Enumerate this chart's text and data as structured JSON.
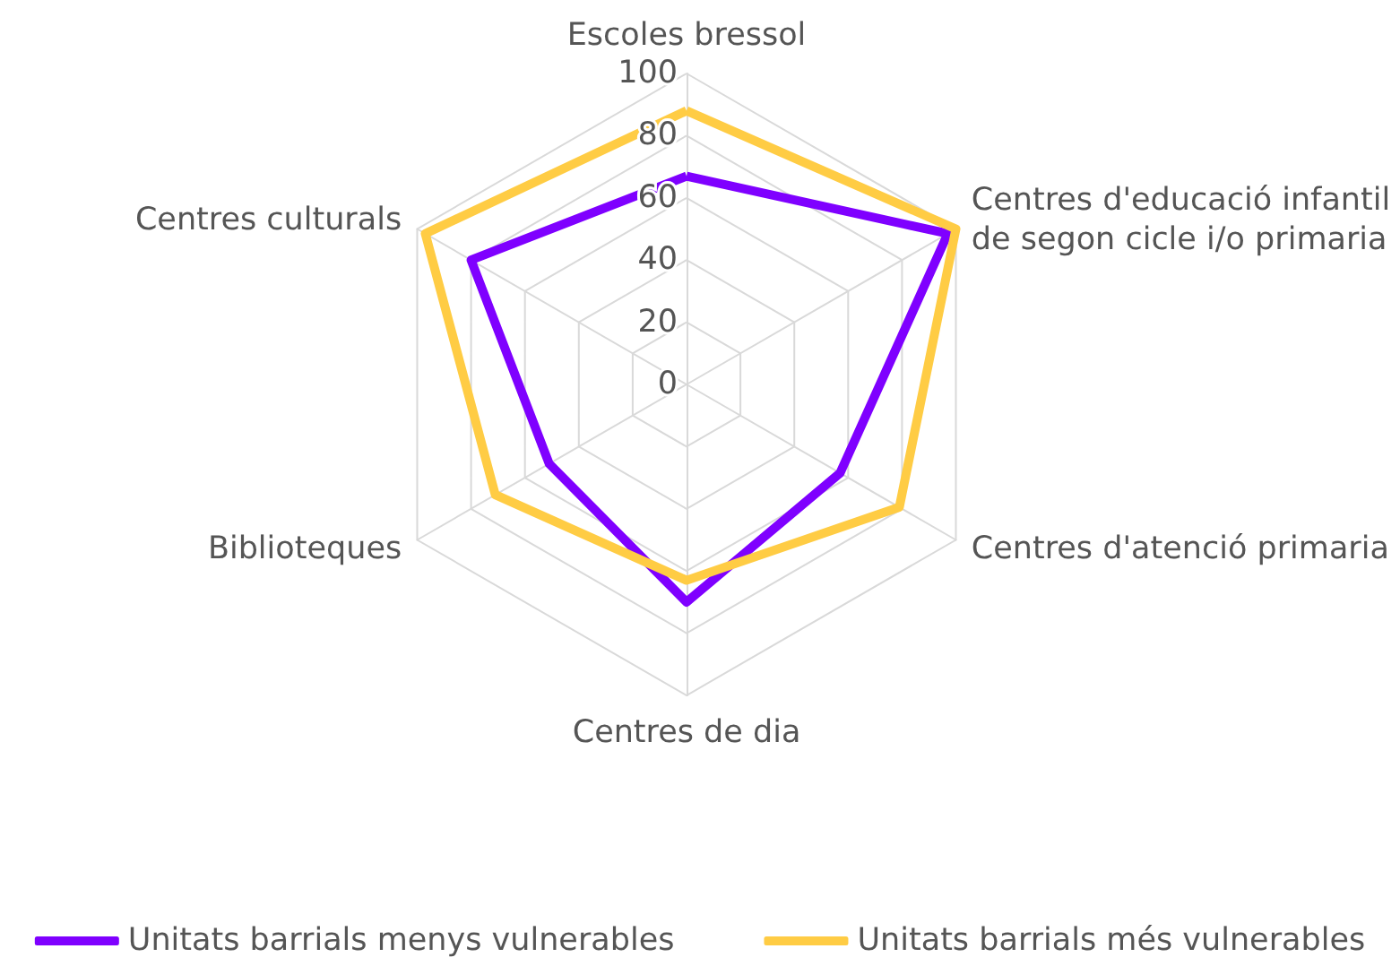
{
  "chart_data": {
    "type": "radar",
    "categories": [
      "Escoles bressol",
      "Centres d'educació infantil\nde segon cicle i/o primaria",
      "Centres d'atenció primaria",
      "Centres de dia",
      "Biblioteques",
      "Centres culturals"
    ],
    "series": [
      {
        "name": "Unitats barrials menys vulnerables",
        "color": "#7f00ff",
        "values": [
          67,
          97,
          57,
          70,
          51,
          80
        ]
      },
      {
        "name": "Unitats barrials més vulnerables",
        "color": "#ffcc44",
        "values": [
          88,
          100,
          79,
          63,
          71,
          97
        ]
      }
    ],
    "ylim": [
      0,
      100
    ],
    "yticks": [
      0,
      20,
      40,
      60,
      80,
      100
    ],
    "grid": true,
    "legend": "bottom"
  }
}
